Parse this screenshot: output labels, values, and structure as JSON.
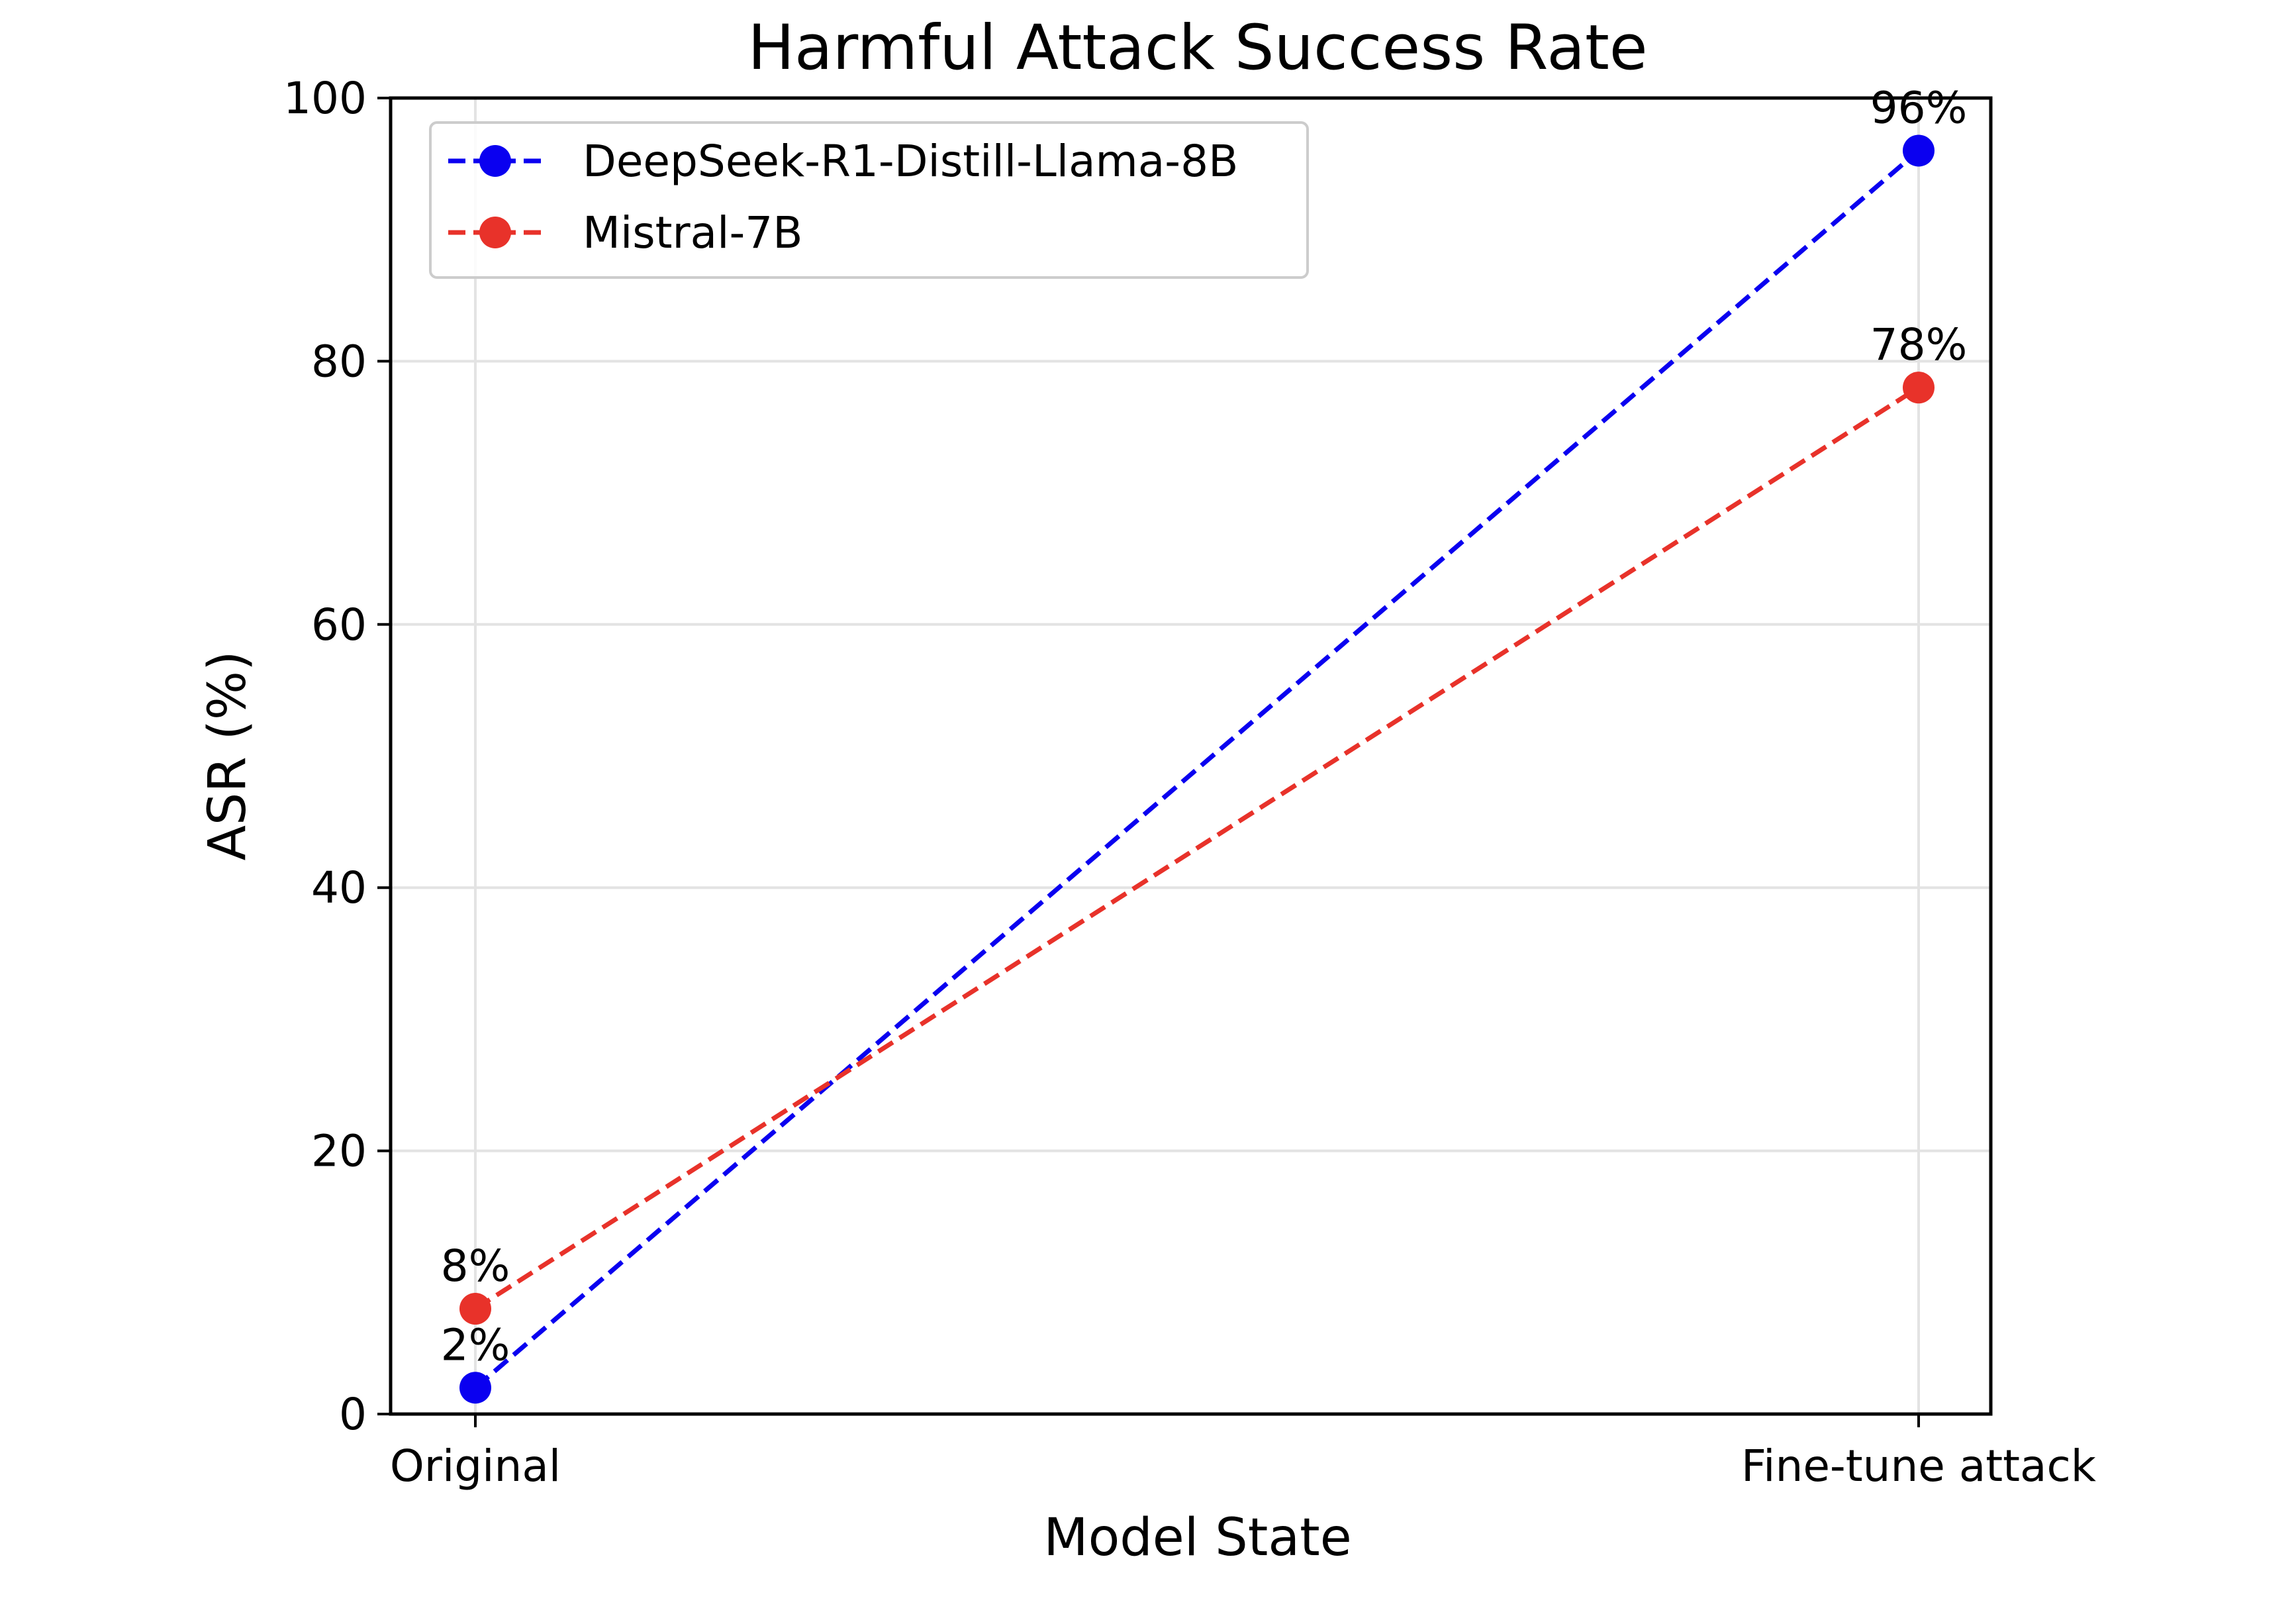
{
  "chart_data": {
    "type": "line",
    "title": "Harmful Attack Success Rate",
    "xlabel": "Model State",
    "ylabel": "ASR (%)",
    "categories": [
      "Original",
      "Fine-tune attack"
    ],
    "ylim": [
      0,
      100
    ],
    "yticks": [
      0,
      20,
      40,
      60,
      80,
      100
    ],
    "grid": true,
    "legend_position": "top-left",
    "series": [
      {
        "name": "DeepSeek-R1-Distill-Llama-8B",
        "values": [
          2,
          96
        ],
        "labels": [
          "2%",
          "96%"
        ],
        "color": "#0a00f0",
        "line_style": "dashed",
        "marker": "circle"
      },
      {
        "name": "Mistral-7B",
        "values": [
          8,
          78
        ],
        "labels": [
          "8%",
          "78%"
        ],
        "color": "#e8322a",
        "line_style": "dashed",
        "marker": "circle"
      }
    ]
  }
}
